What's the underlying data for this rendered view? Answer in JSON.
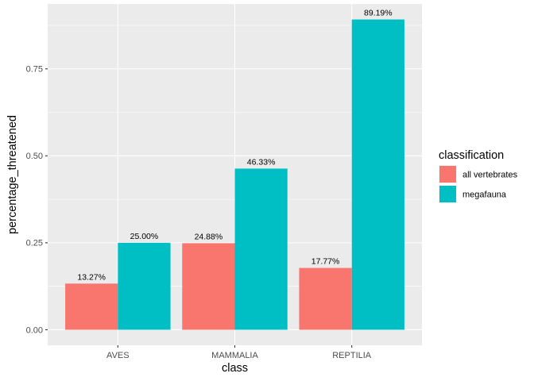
{
  "chart_data": {
    "type": "bar",
    "categories": [
      "AVES",
      "MAMMALIA",
      "REPTILIA"
    ],
    "series": [
      {
        "name": "all vertebrates",
        "color": "#F8766D",
        "values": [
          0.1327,
          0.2488,
          0.1777
        ],
        "labels": [
          "13.27%",
          "24.88%",
          "17.77%"
        ]
      },
      {
        "name": "megafauna",
        "color": "#00BFC4",
        "values": [
          0.25,
          0.4633,
          0.8919
        ],
        "labels": [
          "25.00%",
          "46.33%",
          "89.19%"
        ]
      }
    ],
    "xlabel": "class",
    "ylabel": "percentage_threatened",
    "ylim": [
      -0.0446,
      0.9365
    ],
    "yticks": [
      0.0,
      0.25,
      0.5,
      0.75
    ],
    "ytick_labels": [
      "0.00",
      "0.25",
      "0.50",
      "0.75"
    ],
    "legend": {
      "title": "classification",
      "placement": "right"
    },
    "panel_background": "#EBEBEB",
    "grid": true
  }
}
